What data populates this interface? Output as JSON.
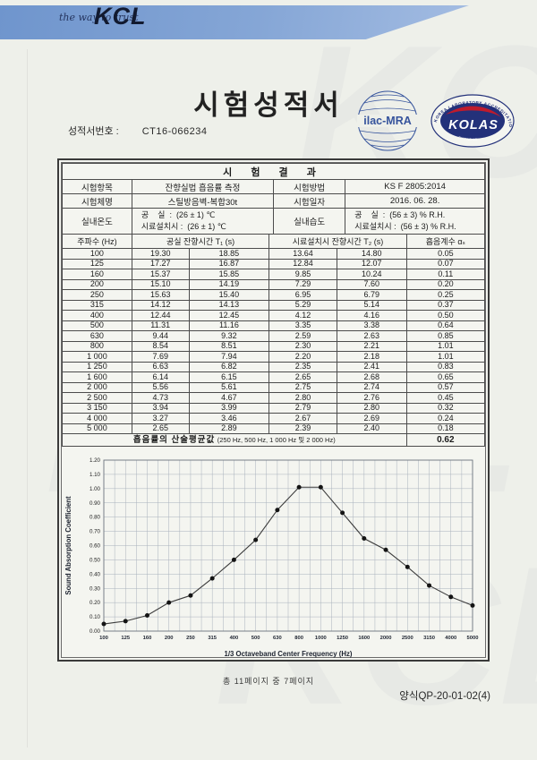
{
  "header": {
    "tagline": "the way to trust",
    "logo": "KCL",
    "banner_color": "#7b9fd3"
  },
  "title": "시험성적서",
  "report": {
    "label": "성적서번호 :",
    "number": "CT16-066234"
  },
  "seals": {
    "ilac_text": "ilac-MRA",
    "kolas_text": "KOLAS",
    "kolas_ring_text": "KOREA LABORATORY ACCREDITATION SCHEME",
    "kolas_bottom_text": "TESTING NO."
  },
  "results": {
    "title": "시 험 결 과",
    "info": {
      "test_item_label": "시험항목",
      "test_item": "잔향실법 흡음률 측정",
      "test_method_label": "시험방법",
      "test_method": "KS F 2805:2014",
      "specimen_label": "시험체명",
      "specimen": "스틸방음벽-복합30t",
      "test_date_label": "시험일자",
      "test_date": "2016. 06. 28.",
      "room_temp_label": "실내온도",
      "room_temp_line1": "공    실  :  (26 ± 1) ℃",
      "room_temp_line2": "시료설치시 :  (26 ± 1) ℃",
      "humidity_label": "실내습도",
      "humidity_line1": "공    실  :  (56 ± 3) % R.H.",
      "humidity_line2": "시료설치시 :  (56 ± 3) % R.H."
    },
    "freq_table": {
      "col_freq": "주파수 (Hz)",
      "col_t1": "공실 잔향시간 T₁ (s)",
      "col_t2": "시료설치시 잔향시간 T₂ (s)",
      "col_alpha": "흡음계수 αₛ",
      "rows": [
        [
          "100",
          "19.30",
          "18.85",
          "13.64",
          "14.80",
          "0.05"
        ],
        [
          "125",
          "17.27",
          "16.87",
          "12.84",
          "12.07",
          "0.07"
        ],
        [
          "160",
          "15.37",
          "15.85",
          "9.85",
          "10.24",
          "0.11"
        ],
        [
          "200",
          "15.10",
          "14.19",
          "7.29",
          "7.60",
          "0.20"
        ],
        [
          "250",
          "15.63",
          "15.40",
          "6.95",
          "6.79",
          "0.25"
        ],
        [
          "315",
          "14.12",
          "14.13",
          "5.29",
          "5.14",
          "0.37"
        ],
        [
          "400",
          "12.44",
          "12.45",
          "4.12",
          "4.16",
          "0.50"
        ],
        [
          "500",
          "11.31",
          "11.16",
          "3.35",
          "3.38",
          "0.64"
        ],
        [
          "630",
          "9.44",
          "9.32",
          "2.59",
          "2.63",
          "0.85"
        ],
        [
          "800",
          "8.54",
          "8.51",
          "2.30",
          "2.21",
          "1.01"
        ],
        [
          "1 000",
          "7.69",
          "7.94",
          "2.20",
          "2.18",
          "1.01"
        ],
        [
          "1 250",
          "6.63",
          "6.82",
          "2.35",
          "2.41",
          "0.83"
        ],
        [
          "1 600",
          "6.14",
          "6.15",
          "2.65",
          "2.68",
          "0.65"
        ],
        [
          "2 000",
          "5.56",
          "5.61",
          "2.75",
          "2.74",
          "0.57"
        ],
        [
          "2 500",
          "4.73",
          "4.67",
          "2.80",
          "2.76",
          "0.45"
        ],
        [
          "3 150",
          "3.94",
          "3.99",
          "2.79",
          "2.80",
          "0.32"
        ],
        [
          "4 000",
          "3.27",
          "3.46",
          "2.67",
          "2.69",
          "0.24"
        ],
        [
          "5 000",
          "2.65",
          "2.89",
          "2.39",
          "2.40",
          "0.18"
        ]
      ],
      "avg_label": "흡음률의 산술평균값",
      "avg_note": "(250 Hz, 500 Hz, 1 000 Hz 및 2 000 Hz)",
      "avg_value": "0.62"
    }
  },
  "chart_data": {
    "type": "line",
    "categories": [
      "100",
      "125",
      "160",
      "200",
      "250",
      "315",
      "400",
      "500",
      "630",
      "800",
      "1000",
      "1250",
      "1600",
      "2000",
      "2500",
      "3150",
      "4000",
      "5000"
    ],
    "values": [
      0.05,
      0.07,
      0.11,
      0.2,
      0.25,
      0.37,
      0.5,
      0.64,
      0.85,
      1.01,
      1.01,
      0.83,
      0.65,
      0.57,
      0.45,
      0.32,
      0.24,
      0.18
    ],
    "title": "",
    "xlabel": "1/3 Octaveband Center Frequency (Hz)",
    "ylabel": "Sound Absorption Coefficient",
    "ylim": [
      0,
      1.2
    ],
    "ytick_step": 0.1,
    "grid": true,
    "legend": "none",
    "line_color": "#3c3c3c",
    "marker_color": "#141414",
    "grid_color": "#a9b1bc"
  },
  "footer": {
    "page_info": "총 11페이지 중 7페이지",
    "form_no": "양식QP-20-01-02(4)"
  }
}
